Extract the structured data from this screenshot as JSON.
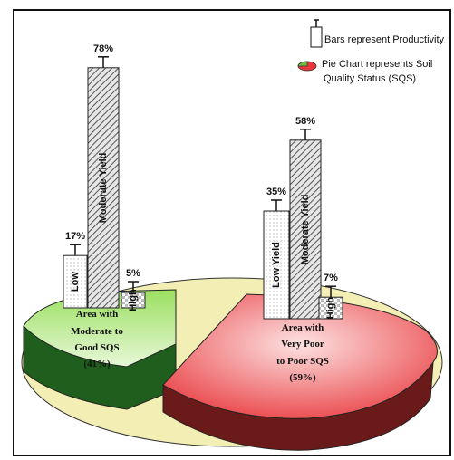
{
  "chart_data": {
    "type": "bar",
    "legend": {
      "placement": "top-right",
      "bars_text": "Bars represent Productivity",
      "pie_text_line1": "Pie Chart represents Soil",
      "pie_text_line2": "Quality Status (SQS)"
    },
    "pie": {
      "type": "pie",
      "slices": [
        {
          "label_lines": [
            "Area with",
            "Moderate to",
            "Good SQS",
            "(41%)"
          ],
          "value": 41,
          "color": "#6fbf3a"
        },
        {
          "label_lines": [
            "Area with",
            "Very Poor",
            "to Poor SQS",
            "(59%)"
          ],
          "value": 59,
          "color": "#e8383c"
        }
      ],
      "base_color": "#f3efb4"
    },
    "bar_groups": [
      {
        "group": "Moderate to Good SQS",
        "bars": [
          {
            "label": "Low",
            "value": 17,
            "value_label": "17%",
            "pattern": "dots"
          },
          {
            "label": "Moderate Yield",
            "value": 78,
            "value_label": "78%",
            "pattern": "hatch"
          },
          {
            "label": "High",
            "value": 5,
            "value_label": "5%",
            "pattern": "checker"
          }
        ]
      },
      {
        "group": "Very Poor to Poor SQS",
        "bars": [
          {
            "label": "Low Yield",
            "value": 35,
            "value_label": "35%",
            "pattern": "dots"
          },
          {
            "label": "Moderate Yield",
            "value": 58,
            "value_label": "58%",
            "pattern": "hatch"
          },
          {
            "label": "High",
            "value": 7,
            "value_label": "7%",
            "pattern": "checker"
          }
        ]
      }
    ]
  }
}
